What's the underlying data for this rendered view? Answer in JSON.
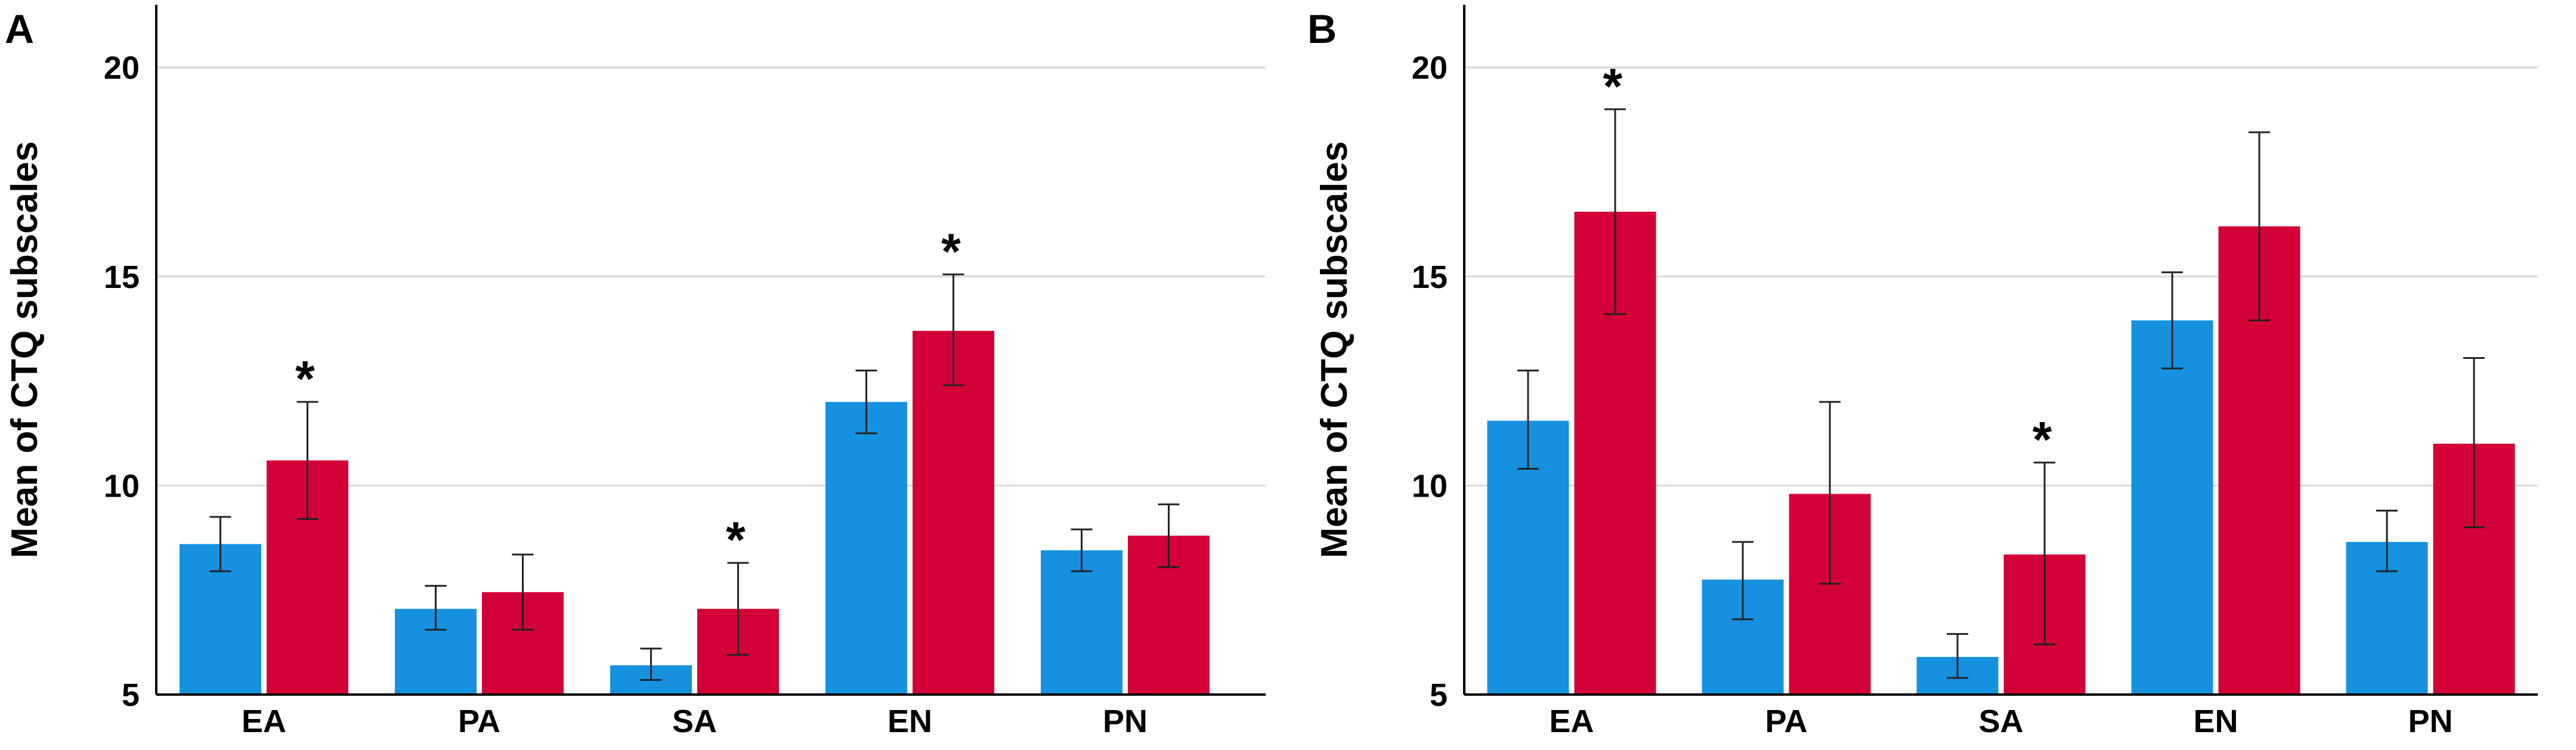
{
  "colors": {
    "group1": "#1591e0",
    "group2": "#d30037",
    "grid": "#d9d9d9",
    "axis": "#000000",
    "errorbar": "#222222"
  },
  "chart_data": [
    {
      "panel_label": "A",
      "type": "bar",
      "categories": [
        "EA",
        "PA",
        "SA",
        "EN",
        "PN"
      ],
      "series": [
        {
          "name": "group1",
          "values": [
            8.6,
            7.05,
            5.7,
            12.0,
            8.45
          ],
          "err_low": [
            7.95,
            6.55,
            5.35,
            11.25,
            7.95
          ],
          "err_high": [
            9.25,
            7.6,
            6.1,
            12.75,
            8.95
          ]
        },
        {
          "name": "group2",
          "values": [
            10.6,
            7.45,
            7.05,
            13.7,
            8.8
          ],
          "err_low": [
            9.2,
            6.55,
            5.95,
            12.4,
            8.05
          ],
          "err_high": [
            12.0,
            8.35,
            8.15,
            15.05,
            9.55
          ]
        }
      ],
      "significance_marker": "*",
      "significant_categories": [
        "EA",
        "SA",
        "EN"
      ],
      "ylabel": "Mean of CTQ subscales",
      "xlabel": "",
      "ylim": [
        5,
        21.5
      ],
      "yticks": [
        "5",
        "10",
        "15",
        "20"
      ],
      "grid": true
    },
    {
      "panel_label": "B",
      "type": "bar",
      "categories": [
        "EA",
        "PA",
        "SA",
        "EN",
        "PN"
      ],
      "series": [
        {
          "name": "group1",
          "values": [
            11.55,
            7.75,
            5.9,
            13.95,
            8.65
          ],
          "err_low": [
            10.4,
            6.8,
            5.4,
            12.8,
            7.95
          ],
          "err_high": [
            12.75,
            8.65,
            6.45,
            15.1,
            9.4
          ]
        },
        {
          "name": "group2",
          "values": [
            16.55,
            9.8,
            8.35,
            16.2,
            11.0
          ],
          "err_low": [
            14.1,
            7.65,
            6.2,
            13.95,
            9.0
          ],
          "err_high": [
            19.0,
            12.0,
            10.55,
            18.45,
            13.05
          ]
        }
      ],
      "significance_marker": "*",
      "significant_categories": [
        "EA",
        "SA"
      ],
      "ylabel": "Mean of CTQ subscales",
      "xlabel": "",
      "ylim": [
        5,
        21.5
      ],
      "yticks": [
        "5",
        "10",
        "15",
        "20"
      ],
      "grid": true
    }
  ]
}
